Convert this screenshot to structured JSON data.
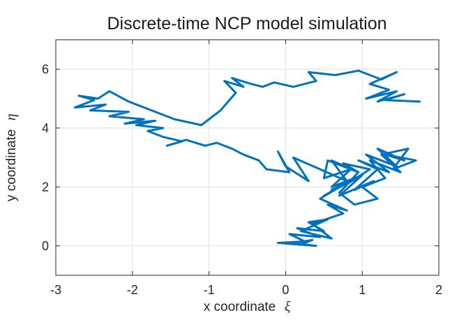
{
  "chart_data": {
    "type": "line",
    "title": "Discrete-time NCP model simulation",
    "xlabel": "x coordinate",
    "xlabel_symbol": "ξ",
    "ylabel": "y coordinate",
    "ylabel_symbol": "η",
    "xlim": [
      -3,
      2
    ],
    "ylim": [
      -1,
      7
    ],
    "xticks": [
      -3,
      -2,
      -1,
      0,
      1,
      2
    ],
    "xtick_labels": [
      "-3",
      "-2",
      "-1",
      "0",
      "1",
      "2"
    ],
    "yticks": [
      0,
      2,
      4,
      6
    ],
    "ytick_labels": [
      "0",
      "2",
      "4",
      "6"
    ],
    "grid": true,
    "line_color": "#0072BD",
    "series": [
      {
        "x": [
          0.2,
          0.35,
          0.1,
          0.4,
          -0.1,
          0.25,
          0.05,
          0.45,
          0.15,
          0.5,
          0.3,
          0.55,
          0.2,
          0.6,
          0.35,
          0.75,
          0.55,
          0.8,
          0.45,
          0.7,
          0.5,
          0.85,
          0.6,
          1.0,
          0.8,
          1.1,
          0.75,
          0.95,
          0.55,
          0.5,
          0.85,
          0.6,
          1.0,
          0.7,
          1.15,
          0.9,
          1.2,
          0.95,
          1.35,
          1.05,
          1.45,
          1.2,
          1.55,
          1.3,
          1.7,
          1.4,
          1.6,
          1.25,
          1.5,
          1.1,
          1.3,
          1.0,
          1.2,
          0.9,
          0.7,
          0.95,
          0.6,
          0.8,
          0.45,
          0.1,
          0.3,
          0.0,
          -0.1,
          0.05,
          -0.25,
          -0.35,
          -0.55,
          -0.7,
          -0.9,
          -1.05,
          -1.3,
          -1.55,
          -1.35,
          -1.6,
          -1.8,
          -1.6,
          -1.95,
          -1.7,
          -2.1,
          -1.85,
          -2.3,
          -2.05,
          -2.55,
          -2.35,
          -2.75,
          -2.5,
          -2.7,
          -2.45,
          -2.3,
          -2.05,
          -1.75,
          -1.45,
          -1.1,
          -0.85,
          -0.65,
          -0.8,
          -0.55,
          -0.7,
          -0.45,
          -0.3,
          -0.15,
          0.1,
          0.4,
          0.3,
          0.65,
          0.95,
          1.25,
          1.45,
          1.1,
          1.35,
          1.05,
          1.45,
          1.2,
          1.55,
          1.3,
          1.75
        ],
        "y": [
          0.05,
          0.2,
          0.1,
          0.0,
          0.1,
          0.15,
          0.4,
          0.3,
          0.6,
          0.5,
          0.8,
          0.9,
          0.5,
          0.25,
          0.75,
          1.1,
          1.4,
          1.2,
          1.6,
          2.0,
          1.7,
          2.2,
          1.9,
          2.4,
          2.1,
          2.6,
          2.8,
          2.5,
          2.9,
          2.3,
          2.6,
          2.0,
          2.4,
          1.7,
          2.2,
          1.9,
          2.6,
          2.9,
          2.5,
          3.1,
          2.7,
          3.3,
          2.9,
          3.1,
          2.9,
          2.6,
          3.3,
          3.1,
          2.5,
          2.9,
          2.3,
          2.0,
          1.6,
          1.4,
          1.8,
          2.5,
          2.9,
          2.2,
          2.6,
          3.0,
          2.2,
          2.7,
          3.2,
          2.5,
          2.6,
          2.9,
          3.1,
          3.3,
          3.5,
          3.4,
          3.6,
          3.4,
          3.55,
          3.7,
          3.9,
          4.0,
          4.1,
          4.25,
          4.15,
          4.3,
          4.4,
          4.55,
          4.6,
          4.8,
          4.7,
          4.95,
          5.1,
          5.0,
          5.25,
          4.9,
          4.6,
          4.3,
          4.1,
          4.6,
          5.2,
          5.6,
          5.4,
          5.7,
          5.5,
          5.4,
          5.55,
          5.4,
          5.6,
          5.9,
          5.8,
          5.95,
          5.65,
          5.9,
          5.5,
          5.3,
          5.0,
          5.25,
          4.9,
          5.15,
          4.95,
          4.9
        ]
      }
    ]
  }
}
